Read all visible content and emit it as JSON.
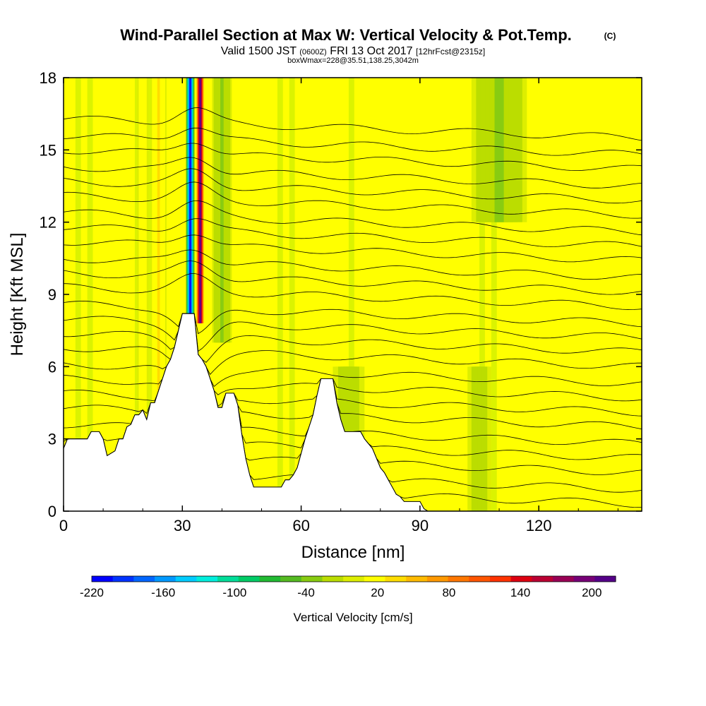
{
  "chart_data": {
    "type": "heatmap",
    "title": "Wind-Parallel Section at Max W: Vertical Velocity & Pot.Temp.",
    "title_units": "(C)",
    "subtitle_main": "Valid 1500 JST",
    "subtitle_z": "(0600Z)",
    "subtitle_date": "FRI 13 Oct 2017",
    "subtitle_fcst": "[12hrFcst@2315z]",
    "subtitle2": "boxWmax=228@35.51,138.25,3042m",
    "xlabel": "Distance [nm]",
    "ylabel": "Height [Kft MSL]",
    "xlim": [
      0,
      146
    ],
    "ylim": [
      0,
      18
    ],
    "x_ticks": [
      0,
      30,
      60,
      90,
      120
    ],
    "y_ticks": [
      0,
      3,
      6,
      9,
      12,
      15,
      18
    ],
    "colorbar": {
      "label": "Vertical Velocity [cm/s]",
      "tick_labels": [
        "-220",
        "-160",
        "-100",
        "-40",
        "20",
        "80",
        "140",
        "200"
      ],
      "colors": [
        "#0000ff",
        "#0033ff",
        "#0066ff",
        "#0099ff",
        "#00ccff",
        "#00eedd",
        "#00dd99",
        "#00cc66",
        "#22bb33",
        "#55bb22",
        "#88cc11",
        "#bbdd00",
        "#ddee00",
        "#ffff00",
        "#ffdd00",
        "#ffbb00",
        "#ff9900",
        "#ff7700",
        "#ff5500",
        "#ff3300",
        "#dd0011",
        "#bb0033",
        "#990055",
        "#770077",
        "#550088"
      ]
    },
    "terrain_profile": [
      [
        0,
        2.6
      ],
      [
        1,
        3
      ],
      [
        6,
        3
      ],
      [
        7,
        3.3
      ],
      [
        9,
        3.3
      ],
      [
        10,
        3
      ],
      [
        11,
        2.3
      ],
      [
        13,
        2.5
      ],
      [
        14,
        3
      ],
      [
        15,
        3
      ],
      [
        16,
        3.5
      ],
      [
        17,
        3.6
      ],
      [
        18,
        4
      ],
      [
        19,
        4
      ],
      [
        20,
        4.2
      ],
      [
        21,
        3.8
      ],
      [
        22,
        4.5
      ],
      [
        23,
        4.5
      ],
      [
        24,
        5
      ],
      [
        25,
        5.5
      ],
      [
        26,
        6
      ],
      [
        27,
        6.3
      ],
      [
        28,
        6.8
      ],
      [
        29,
        7.5
      ],
      [
        30,
        8.2
      ],
      [
        33,
        8.2
      ],
      [
        34,
        6.5
      ],
      [
        35,
        6.3
      ],
      [
        36,
        6
      ],
      [
        37,
        5.5
      ],
      [
        38,
        5
      ],
      [
        39,
        4.3
      ],
      [
        40,
        4.3
      ],
      [
        41,
        4.9
      ],
      [
        43,
        4.9
      ],
      [
        44,
        4.4
      ],
      [
        45,
        3.2
      ],
      [
        46,
        2.2
      ],
      [
        47,
        1.5
      ],
      [
        48,
        1
      ],
      [
        55,
        1
      ],
      [
        56,
        1.3
      ],
      [
        57,
        1.3
      ],
      [
        58,
        1.5
      ],
      [
        59,
        1.8
      ],
      [
        60,
        2.4
      ],
      [
        61,
        3
      ],
      [
        62,
        3.5
      ],
      [
        63,
        4
      ],
      [
        64,
        4.8
      ],
      [
        65,
        5.5
      ],
      [
        68,
        5.5
      ],
      [
        69,
        4.5
      ],
      [
        70,
        3.8
      ],
      [
        71,
        3.3
      ],
      [
        75,
        3.3
      ],
      [
        76,
        3
      ],
      [
        77,
        2.8
      ],
      [
        78,
        2.6
      ],
      [
        79,
        2.2
      ],
      [
        80,
        1.8
      ],
      [
        81,
        1.6
      ],
      [
        82,
        1.3
      ],
      [
        83,
        1
      ],
      [
        84,
        0.7
      ],
      [
        85,
        0.6
      ],
      [
        86,
        0.4
      ],
      [
        90,
        0.4
      ],
      [
        91,
        0.1
      ],
      [
        92,
        0
      ],
      [
        146,
        0
      ]
    ],
    "theta_levels": [
      14,
      16,
      18,
      20,
      22,
      24,
      26,
      28,
      30,
      32,
      34,
      36,
      38,
      40,
      42,
      44,
      46,
      48,
      50,
      52,
      54,
      56,
      58,
      60,
      62,
      64
    ],
    "theta_heights_kft": [
      0.4,
      1.1,
      1.7,
      2.4,
      3.0,
      3.6,
      4.3,
      4.9,
      5.5,
      6.1,
      6.8,
      7.4,
      8.0,
      8.6,
      9.3,
      9.9,
      10.5,
      11.2,
      11.8,
      12.4,
      13.1,
      13.7,
      14.3,
      15.0,
      15.6,
      16.3
    ],
    "velocity_features": [
      {
        "x": 32,
        "w": 2.2,
        "v": -220,
        "ymin": 7.8,
        "ymax": 18
      },
      {
        "x": 34.5,
        "w": 2.0,
        "v": 228,
        "ymin": 7.8,
        "ymax": 18
      },
      {
        "x": 24,
        "w": 4,
        "v": 30,
        "ymin": 3,
        "ymax": 18
      },
      {
        "x": 20,
        "w": 3,
        "v": 20,
        "ymin": 3,
        "ymax": 18
      },
      {
        "x": 40,
        "w": 5,
        "v": -30,
        "ymin": 7,
        "ymax": 18
      },
      {
        "x": 110,
        "w": 14,
        "v": -30,
        "ymin": 12,
        "ymax": 18
      },
      {
        "x": 72,
        "w": 8,
        "v": -20,
        "ymin": 0,
        "ymax": 6
      },
      {
        "x": 105,
        "w": 6,
        "v": -20,
        "ymin": 0,
        "ymax": 6
      }
    ]
  }
}
